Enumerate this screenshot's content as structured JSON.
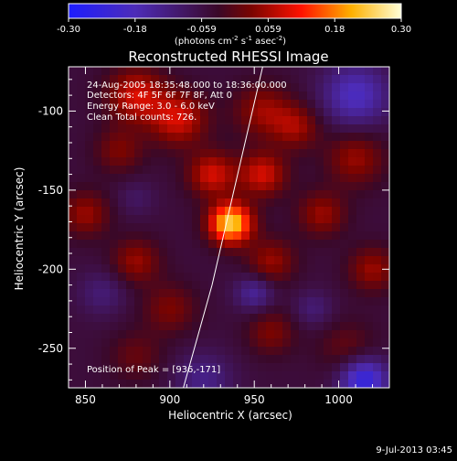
{
  "chart_data": {
    "type": "heatmap",
    "title": "Reconstructed RHESSI Image",
    "xlabel": "Heliocentric X (arcsec)",
    "ylabel": "Heliocentric Y (arcsec)",
    "xlim": [
      840,
      1030
    ],
    "ylim": [
      -275,
      -72
    ],
    "x_ticks": [
      850,
      900,
      950,
      1000
    ],
    "y_ticks": [
      -100,
      -150,
      -200,
      -250
    ],
    "colorbar": {
      "ticks": [
        "-0.30",
        "-0.18",
        "-0.059",
        "0.059",
        "0.18",
        "0.30"
      ],
      "range": [
        -0.3,
        0.3
      ],
      "unit_text": "(photons cm",
      "unit_sup1": "-2",
      "unit_mid": " s",
      "unit_sup2": "-1",
      "unit_mid2": " asec",
      "unit_sup3": "-2",
      "unit_end": ")"
    },
    "annotations": {
      "time": "24-Aug-2005 18:35:48.000 to 18:36:00.000",
      "detectors": "Detectors: 4F 5F 6F 7F 8F, Att 0",
      "energy": "Energy Range: 3.0 - 6.0 keV",
      "clean": "Clean     Total counts: 726.",
      "peak": "Position of Peak = [936,-171]"
    },
    "peak": {
      "x": 936,
      "y": -171
    },
    "limb": [
      [
        908,
        -275
      ],
      [
        925,
        -210
      ],
      [
        938,
        -150
      ],
      [
        955,
        -72
      ]
    ],
    "blobs": [
      {
        "x": 936,
        "y": -171,
        "v": 0.3,
        "s": 9
      },
      {
        "x": 955,
        "y": -140,
        "v": 0.14,
        "s": 10
      },
      {
        "x": 925,
        "y": -140,
        "v": 0.14,
        "s": 10
      },
      {
        "x": 880,
        "y": -90,
        "v": 0.14,
        "s": 12
      },
      {
        "x": 905,
        "y": -105,
        "v": 0.14,
        "s": 12
      },
      {
        "x": 955,
        "y": -100,
        "v": 0.1,
        "s": 12
      },
      {
        "x": 975,
        "y": -110,
        "v": 0.1,
        "s": 10
      },
      {
        "x": 1010,
        "y": -130,
        "v": 0.1,
        "s": 12
      },
      {
        "x": 990,
        "y": -165,
        "v": 0.1,
        "s": 10
      },
      {
        "x": 1020,
        "y": -200,
        "v": 0.1,
        "s": 10
      },
      {
        "x": 880,
        "y": -195,
        "v": 0.1,
        "s": 10
      },
      {
        "x": 850,
        "y": -165,
        "v": 0.1,
        "s": 10
      },
      {
        "x": 960,
        "y": -195,
        "v": 0.1,
        "s": 10
      },
      {
        "x": 900,
        "y": -225,
        "v": 0.08,
        "s": 11
      },
      {
        "x": 960,
        "y": -240,
        "v": 0.08,
        "s": 10
      },
      {
        "x": 1005,
        "y": -250,
        "v": 0.06,
        "s": 12
      },
      {
        "x": 880,
        "y": -255,
        "v": 0.06,
        "s": 11
      },
      {
        "x": 870,
        "y": -125,
        "v": 0.08,
        "s": 10
      },
      {
        "x": 950,
        "y": -215,
        "v": -0.1,
        "s": 8
      },
      {
        "x": 1010,
        "y": -90,
        "v": -0.14,
        "s": 14
      },
      {
        "x": 1015,
        "y": -270,
        "v": -0.2,
        "s": 10
      },
      {
        "x": 920,
        "y": -270,
        "v": -0.08,
        "s": 12
      },
      {
        "x": 860,
        "y": -215,
        "v": -0.06,
        "s": 10
      },
      {
        "x": 880,
        "y": -155,
        "v": -0.04,
        "s": 8
      },
      {
        "x": 985,
        "y": -225,
        "v": -0.06,
        "s": 8
      }
    ],
    "footer_date": "9-Jul-2013 03:45"
  }
}
